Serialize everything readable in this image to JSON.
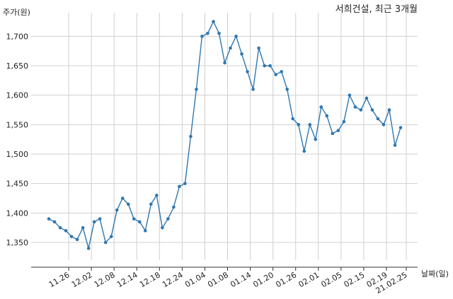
{
  "chart_data": {
    "type": "line",
    "title": "서희건설, 최근 3개월",
    "ylabel": "주가(원)",
    "xlabel": "날짜(일)",
    "ylim": [
      1320,
      1740
    ],
    "yticks": [
      1350,
      1400,
      1450,
      1500,
      1550,
      1600,
      1650,
      1700
    ],
    "ytick_labels": [
      "1,350",
      "1,400",
      "1,450",
      "1,500",
      "1,550",
      "1,600",
      "1,650",
      "1,700"
    ],
    "xticks": [
      {
        "label": "11.26",
        "index": 3.5
      },
      {
        "label": "12.02",
        "index": 7.5
      },
      {
        "label": "12.08",
        "index": 11.5
      },
      {
        "label": "12.14",
        "index": 15.5
      },
      {
        "label": "12.18",
        "index": 19.5
      },
      {
        "label": "12.24",
        "index": 23.5
      },
      {
        "label": "01.04",
        "index": 27.5
      },
      {
        "label": "01.08",
        "index": 31.5
      },
      {
        "label": "01.14",
        "index": 35.5
      },
      {
        "label": "01.20",
        "index": 39.5
      },
      {
        "label": "01.26",
        "index": 43.5
      },
      {
        "label": "02.01",
        "index": 47.5
      },
      {
        "label": "02.05",
        "index": 51.5
      },
      {
        "label": "02.15",
        "index": 55.5
      },
      {
        "label": "02.19",
        "index": 59.5
      },
      {
        "label": "21.02.25",
        "index": 63
      }
    ],
    "grid": true,
    "line_color": "#2f77b0",
    "series": [
      {
        "values": [
          1390,
          1385,
          1375,
          1370,
          1360,
          1355,
          1375,
          1340,
          1385,
          1390,
          1350,
          1360,
          1405,
          1425,
          1415,
          1390,
          1385,
          1370,
          1415,
          1430,
          1375,
          1390,
          1410,
          1445,
          1450,
          1530,
          1610,
          1700,
          1705,
          1725,
          1705,
          1655,
          1680,
          1700,
          1670,
          1640,
          1610,
          1680,
          1650,
          1650,
          1635,
          1640,
          1610,
          1560,
          1550,
          1505,
          1550,
          1525,
          1580,
          1565,
          1535,
          1540,
          1555,
          1600,
          1580,
          1575,
          1595,
          1575,
          1560,
          1550,
          1575,
          1515,
          1545
        ]
      }
    ]
  }
}
